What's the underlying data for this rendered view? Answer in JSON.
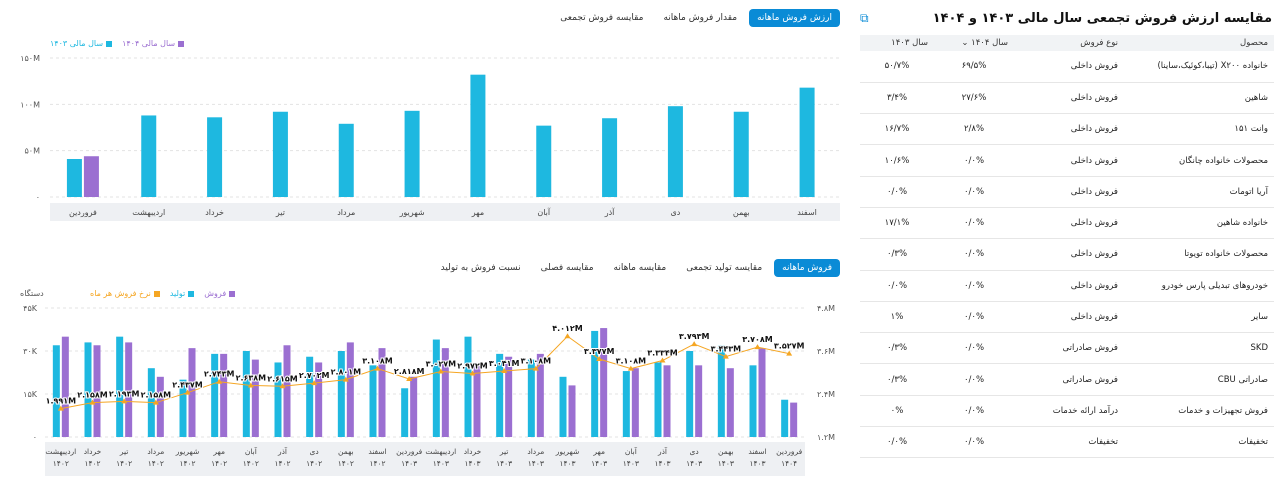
{
  "top_chart": {
    "tabs": [
      "ارزش فروش ماهانه",
      "مقدار فروش ماهانه",
      "مقایسه فروش تجمعی"
    ],
    "legend": [
      "سال مالی ۱۴۰۴",
      "سال مالی ۱۴۰۳"
    ],
    "colors": {
      "y1404": "#9b6fd1",
      "y1403": "#1eb8e0"
    },
    "chart_data": {
      "type": "bar",
      "categories": [
        "فروردین",
        "اردیبهشت",
        "خرداد",
        "تیر",
        "مرداد",
        "شهریور",
        "مهر",
        "آبان",
        "آذر",
        "دی",
        "بهمن",
        "اسفند"
      ],
      "series": [
        {
          "name": "سال مالی ۱۴۰۳",
          "values": [
            41,
            88,
            86,
            92,
            79,
            93,
            132,
            77,
            85,
            98,
            92,
            118
          ]
        },
        {
          "name": "سال مالی ۱۴۰۴",
          "values": [
            44,
            null,
            null,
            null,
            null,
            null,
            null,
            null,
            null,
            null,
            null,
            null
          ]
        }
      ],
      "yticks": [
        "۰",
        "۵۰M",
        "۱۰۰M",
        "۱۵۰M"
      ],
      "ylim": [
        0,
        150
      ]
    }
  },
  "bottom_chart": {
    "tabs": [
      "فروش ماهانه",
      "مقایسه تولید تجمعی",
      "مقایسه ماهانه",
      "مقایسه فصلی",
      "نسبت فروش به تولید"
    ],
    "legend": [
      "فروش",
      "تولید",
      "نرخ فروش هر ماه"
    ],
    "unit": "دستگاه",
    "colors": {
      "sales": "#9b6fd1",
      "production": "#1eb8e0",
      "rate": "#f5a623"
    },
    "chart_data": {
      "type": "bar",
      "categories": [
        "اردیبهشت ۱۴۰۲",
        "خرداد ۱۴۰۲",
        "تیر ۱۴۰۲",
        "مرداد ۱۴۰۲",
        "شهریور ۱۴۰۲",
        "مهر ۱۴۰۲",
        "آبان ۱۴۰۲",
        "آذر ۱۴۰۲",
        "دی ۱۴۰۲",
        "بهمن ۱۴۰۲",
        "اسفند ۱۴۰۲",
        "فروردین ۱۴۰۳",
        "اردیبهشت ۱۴۰۳",
        "خرداد ۱۴۰۳",
        "تیر ۱۴۰۳",
        "مرداد ۱۴۰۳",
        "شهریور ۱۴۰۳",
        "مهر ۱۴۰۳",
        "آبان ۱۴۰۳",
        "آذر ۱۴۰۳",
        "دی ۱۴۰۳",
        "بهمن ۱۴۰۳",
        "اسفند ۱۴۰۳",
        "فروردین ۱۴۰۴"
      ],
      "production": [
        32,
        33,
        35,
        24,
        20,
        29,
        30,
        26,
        28,
        30,
        25,
        17,
        34,
        35,
        29,
        27,
        21,
        37,
        23,
        26,
        30,
        32,
        25,
        13
      ],
      "sales": [
        35,
        32,
        33,
        21,
        31,
        29,
        27,
        32,
        26,
        33,
        31,
        21,
        31,
        25,
        28,
        29,
        18,
        38,
        24,
        25,
        25,
        24,
        31,
        12
      ],
      "rate": [
        1.991,
        2.158,
        2.193,
        2.158,
        2.437,
        2.743,
        2.638,
        2.615,
        2.702,
        2.801,
        3.108,
        2.818,
        3.027,
        2.972,
        3.041,
        3.108,
        4.012,
        3.377,
        3.108,
        3.334,
        3.793,
        3.443,
        3.708,
        3.527
      ],
      "rate_labels": [
        "۱.۹۹۱M",
        "۲.۱۵۸M",
        "۲.۱۹۳M",
        "۲.۱۵۸M",
        "۲.۴۳۷M",
        "۲.۷۴۳M",
        "۲.۶۳۸M",
        "۲.۶۱۵M",
        "۲.۷۰۲M",
        "۲.۸۰۱M",
        "۳.۱۰۸M",
        "۲.۸۱۸M",
        "۳.۰۲۷M",
        "۲.۹۷۲M",
        "۳.۰۴۱M",
        "۳.۱۰۸M",
        "۴.۰۱۲M",
        "۳.۳۷۷M",
        "۳.۱۰۸M",
        "۳.۳۳۴M",
        "۳.۷۹۳M",
        "۳.۴۴۳M",
        "۳.۷۰۸M",
        "۳.۵۲۷M"
      ],
      "yticks_left": [
        "۰",
        "۱۵K",
        "۳۰K",
        "۴۵K"
      ],
      "ylim_left": [
        0,
        45
      ],
      "yticks_right": [
        "۱.۲M",
        "۲.۴M",
        "۳.۶M",
        "۴.۸M"
      ],
      "ylim_right": [
        1.2,
        4.8
      ]
    }
  },
  "table": {
    "title": "مقایسه ارزش فروش تجمعی سال مالی ۱۴۰۳ و ۱۴۰۴",
    "headers": [
      "محصول",
      "نوع فروش",
      "سال ۱۴۰۴",
      "سال ۱۴۰۳"
    ],
    "rows": [
      [
        "خانواده X۲۰۰ (تیبا،کوئیک،ساینا)",
        "فروش داخلی",
        "۶۹/۵%",
        "۵۰/۷%"
      ],
      [
        "شاهین",
        "فروش داخلی",
        "۲۷/۶%",
        "۳/۴%"
      ],
      [
        "وانت ۱۵۱",
        "فروش داخلی",
        "۲/۸%",
        "۱۶/۷%"
      ],
      [
        "محصولات خانواده چانگان",
        "فروش داخلی",
        "۰/۰%",
        "۱۰/۶%"
      ],
      [
        "آریا اتومات",
        "فروش داخلی",
        "۰/۰%",
        "۰/۰%"
      ],
      [
        "خانواده شاهین",
        "فروش داخلی",
        "۰/۰%",
        "۱۷/۱%"
      ],
      [
        "محصولات خانواده تویوتا",
        "فروش داخلی",
        "۰/۰%",
        "۰/۳%"
      ],
      [
        "خودروهای تبدیلی پارس خودرو",
        "فروش داخلی",
        "۰/۰%",
        "۰/۰%"
      ],
      [
        "سایر",
        "فروش داخلی",
        "۰/۰%",
        "۱%"
      ],
      [
        "SKD",
        "فروش صادراتی",
        "۰/۰%",
        "۰/۳%"
      ],
      [
        "صادراتی CBU",
        "فروش صادراتی",
        "۰/۰%",
        "۰/۳%"
      ],
      [
        "فروش تجهیزات و خدمات",
        "درآمد ارائه خدمات",
        "۰/۰%",
        "۰%"
      ],
      [
        "تخفیفات",
        "تخفیفات",
        "۰/۰%",
        "۰/۰%"
      ]
    ]
  }
}
